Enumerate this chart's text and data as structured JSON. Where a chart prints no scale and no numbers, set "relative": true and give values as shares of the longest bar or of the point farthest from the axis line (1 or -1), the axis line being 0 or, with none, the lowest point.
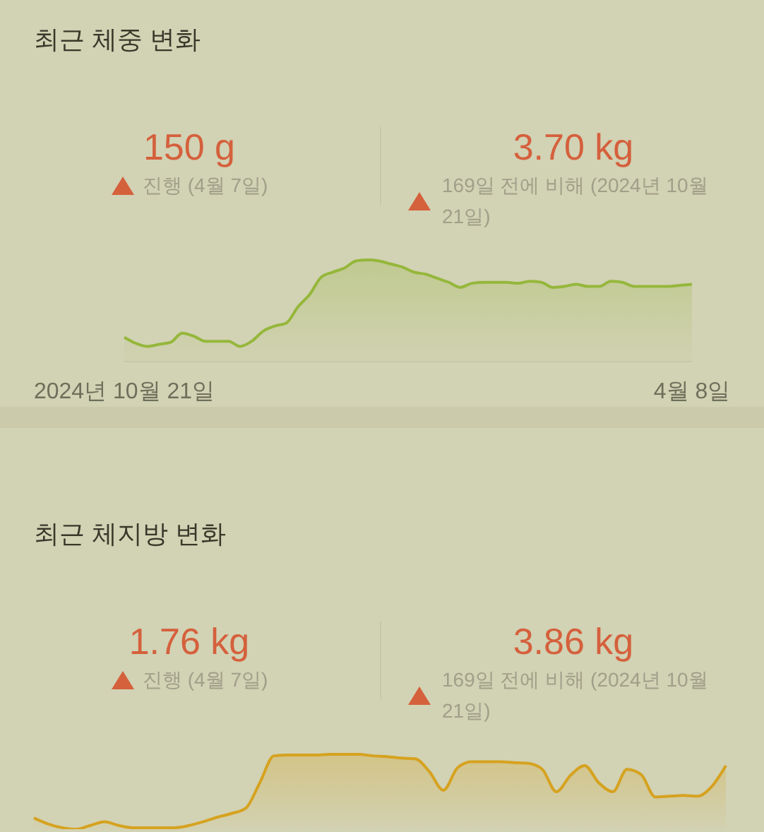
{
  "chart_data": [
    {
      "type": "area",
      "title": "최근 체중 변화",
      "annotations": [
        "150 g",
        "진행 (4월 7일)",
        "3.70 kg",
        "169일 전에 비해 (2024년 10월 21일)"
      ],
      "relative": true,
      "color": "#95b73b",
      "categories": [
        "2024년 10월 21일",
        null,
        null,
        null,
        null,
        null,
        null,
        null,
        null,
        null,
        null,
        null,
        null,
        null,
        null,
        null,
        null,
        null,
        null,
        null,
        null,
        null,
        null,
        null,
        null,
        null,
        null,
        null,
        null,
        null,
        null,
        null,
        null,
        null,
        null,
        null,
        null,
        null,
        null,
        null,
        null,
        null,
        null,
        null,
        null,
        null,
        null,
        null,
        null,
        "4월 8일"
      ],
      "values": [
        0.24,
        0.18,
        0.15,
        0.17,
        0.19,
        0.28,
        0.25,
        0.2,
        0.2,
        0.2,
        0.15,
        0.2,
        0.3,
        0.35,
        0.38,
        0.54,
        0.66,
        0.83,
        0.88,
        0.92,
        0.99,
        1,
        0.99,
        0.96,
        0.93,
        0.88,
        0.86,
        0.82,
        0.78,
        0.73,
        0.77,
        0.78,
        0.78,
        0.78,
        0.77,
        0.79,
        0.78,
        0.73,
        0.74,
        0.76,
        0.74,
        0.74,
        0.79,
        0.78,
        0.74,
        0.74,
        0.74,
        0.74,
        0.75,
        0.76
      ]
    },
    {
      "type": "area",
      "title": "최근 체지방 변화",
      "annotations": [
        "1.76 kg",
        "진행 (4월 7일)",
        "3.86 kg",
        "169일 전에 비해 (2024년 10월 21일)"
      ],
      "relative": true,
      "color": "#d6a21f",
      "categories": [
        null,
        null,
        null,
        null,
        null,
        null,
        null,
        null,
        null,
        null,
        null,
        null,
        null,
        null,
        null,
        null,
        null,
        null,
        null,
        null,
        null,
        null,
        null,
        null,
        null,
        null,
        null,
        null,
        null,
        null,
        null,
        null,
        null,
        null,
        null,
        null,
        null,
        null,
        null,
        null,
        null,
        null,
        null,
        null,
        null,
        null,
        null,
        null,
        null,
        null
      ],
      "values": [
        0.15,
        0.07,
        0.02,
        0,
        0.05,
        0.1,
        0.05,
        0.02,
        0.02,
        0.02,
        0.02,
        0.05,
        0.1,
        0.16,
        0.21,
        0.28,
        0.62,
        0.98,
        0.99,
        0.99,
        0.99,
        1,
        1,
        1,
        0.98,
        0.97,
        0.95,
        0.94,
        0.77,
        0.52,
        0.82,
        0.9,
        0.9,
        0.9,
        0.89,
        0.88,
        0.8,
        0.5,
        0.72,
        0.85,
        0.62,
        0.5,
        0.8,
        0.73,
        0.43,
        0.44,
        0.45,
        0.44,
        0.57,
        0.85
      ]
    }
  ]
}
